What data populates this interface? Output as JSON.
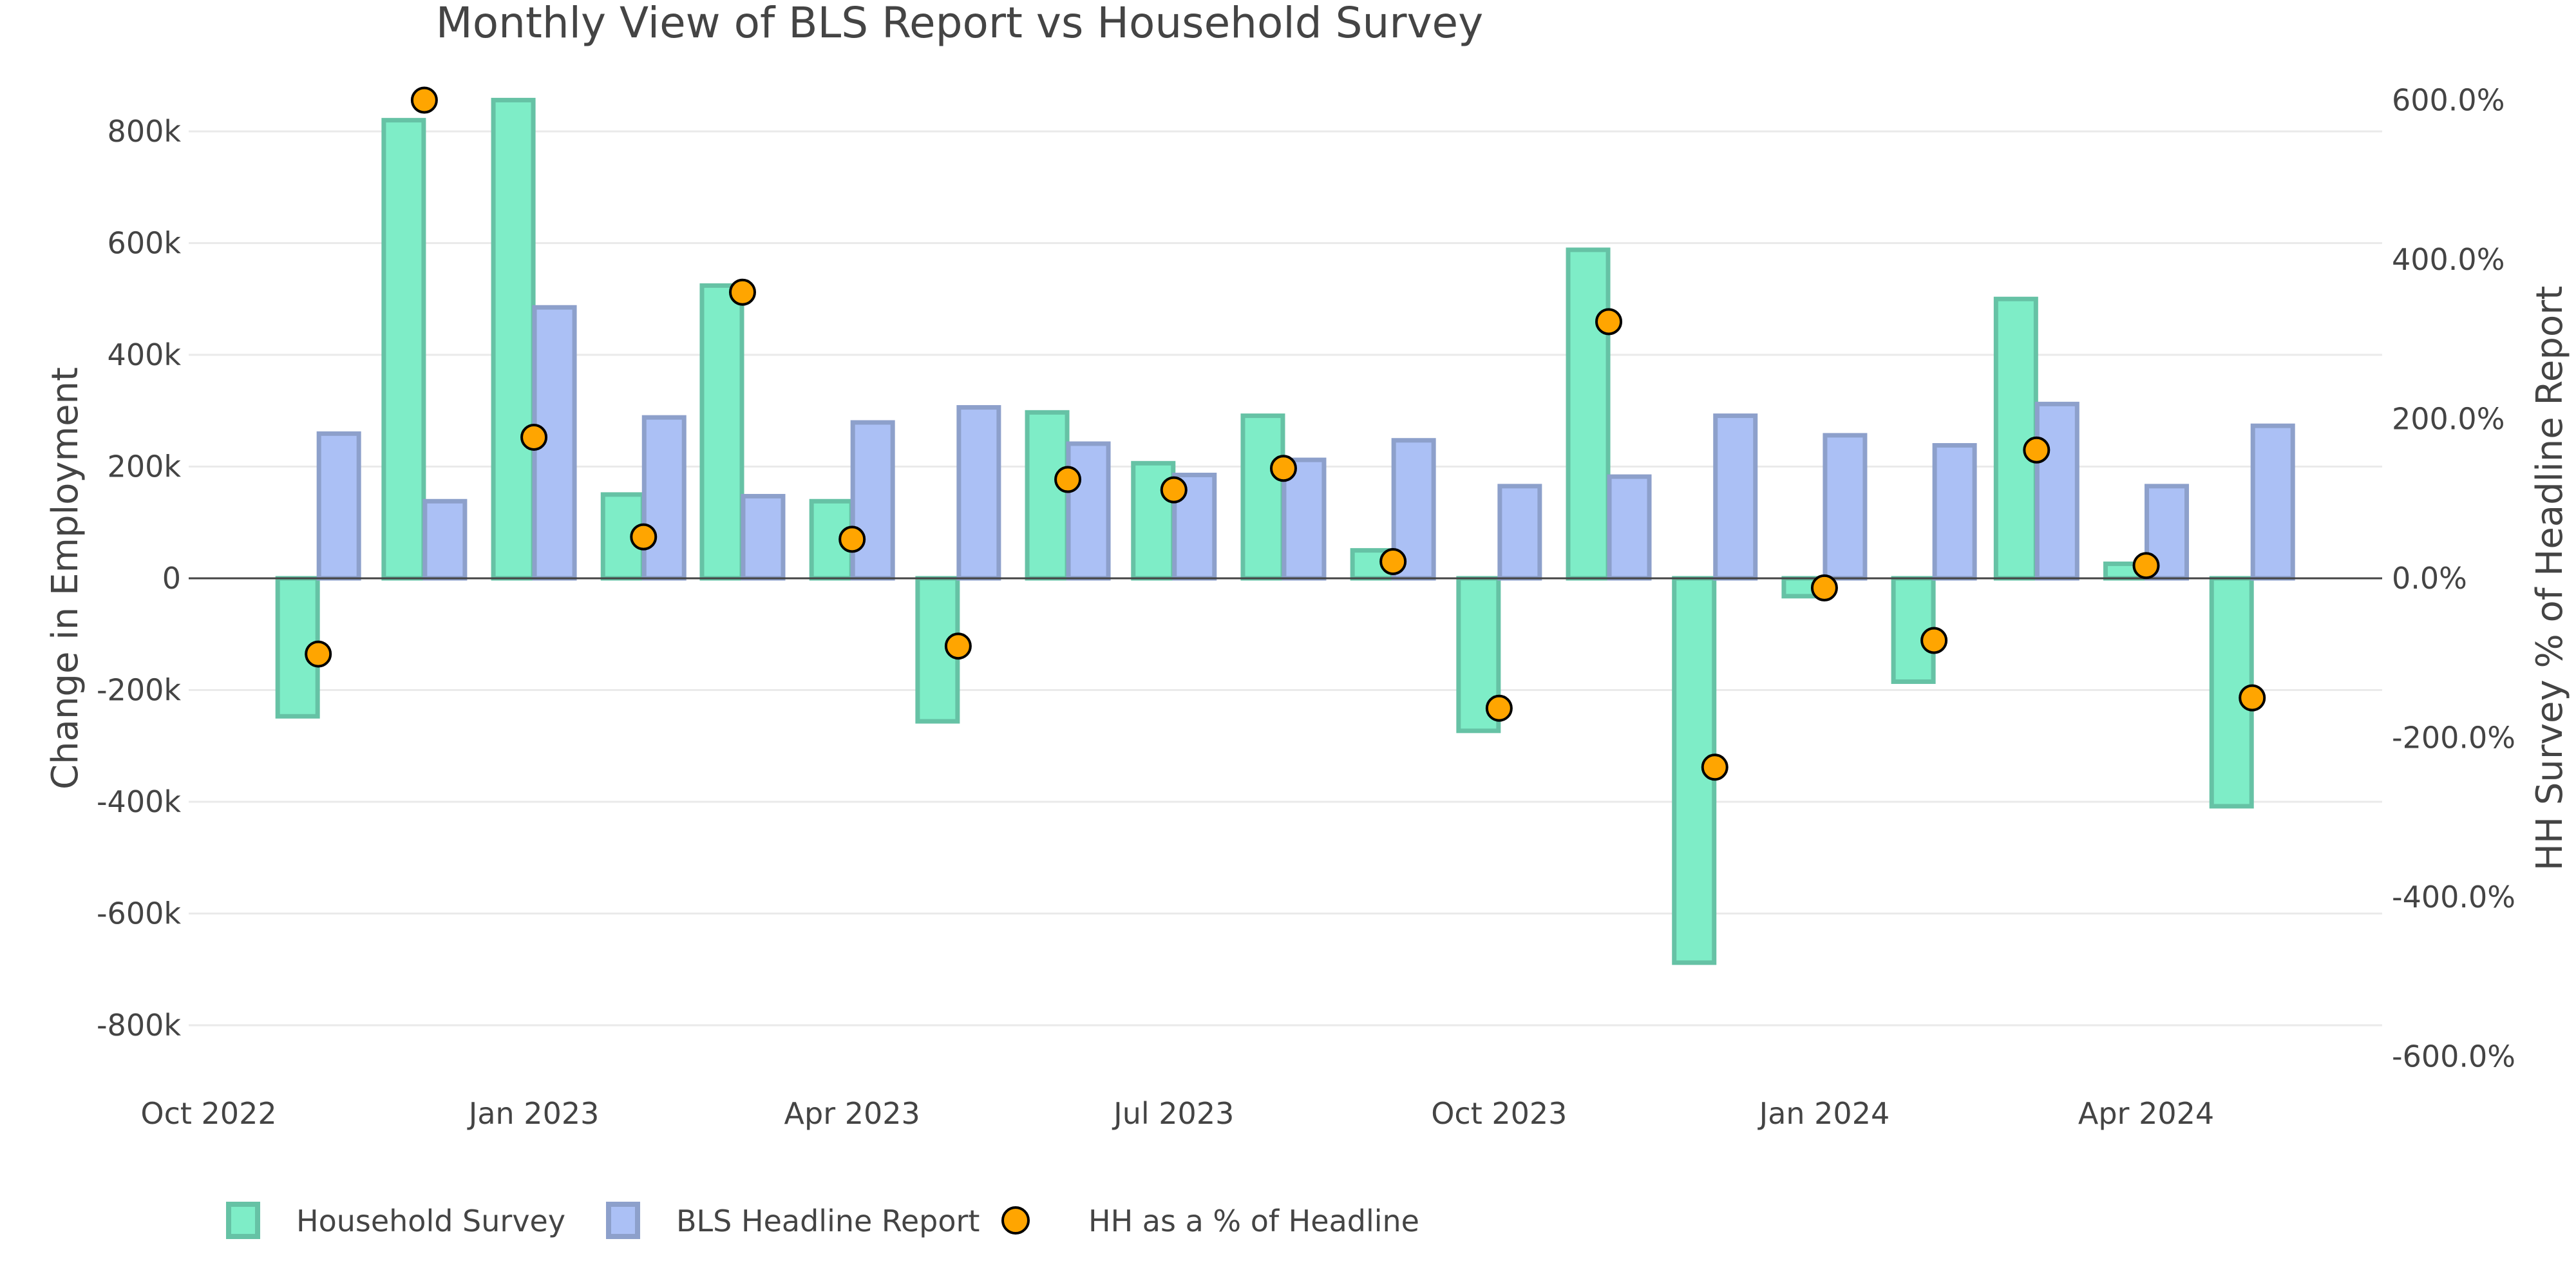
{
  "chart_data": {
    "type": "bar",
    "title": "Monthly View of BLS Report vs Household Survey",
    "ylabel": "Change in Employment",
    "y2label": "HH Survey % of Headline Report",
    "ylim": [
      -890000,
      918000
    ],
    "y2lim": [
      -600,
      600
    ],
    "grid": true,
    "legend_placement": "bottom-left",
    "x": [
      "2022-11",
      "2022-12",
      "2023-01",
      "2023-02",
      "2023-03",
      "2023-04",
      "2023-05",
      "2023-06",
      "2023-07",
      "2023-08",
      "2023-09",
      "2023-10",
      "2023-11",
      "2023-12",
      "2024-01",
      "2024-02",
      "2024-03",
      "2024-04",
      "2024-05"
    ],
    "x_ticks": [
      "Oct 2022",
      "Jan 2023",
      "Apr 2023",
      "Jul 2023",
      "Oct 2023",
      "Jan 2024",
      "Apr 2024"
    ],
    "x_tick_dates": [
      "2022-10-01",
      "2023-01-01",
      "2023-04-01",
      "2023-07-01",
      "2023-10-01",
      "2024-01-01",
      "2024-04-01"
    ],
    "y_ticks": [
      "-800k",
      "-600k",
      "-400k",
      "-200k",
      "0",
      "200k",
      "400k",
      "600k",
      "800k"
    ],
    "y_tick_values": [
      -800000,
      -600000,
      -400000,
      -200000,
      0,
      200000,
      400000,
      600000,
      800000
    ],
    "y2_ticks": [
      "-600.0%",
      "-400.0%",
      "-200.0%",
      "0.0%",
      "200.0%",
      "400.0%",
      "600.0%"
    ],
    "y2_tick_values": [
      -600,
      -400,
      -200,
      0,
      200,
      400,
      600
    ],
    "series": [
      {
        "name": "Household Survey",
        "type": "bar",
        "axis": "left",
        "fill": "#7eedc7",
        "stroke": "#66c2a5",
        "values": [
          -247000,
          820000,
          856000,
          150000,
          524000,
          138000,
          -256000,
          297000,
          206000,
          291000,
          50000,
          -273000,
          588000,
          -688000,
          -32000,
          -185000,
          500000,
          26000,
          -408000
        ]
      },
      {
        "name": "BLS Headline Report",
        "type": "bar",
        "axis": "left",
        "fill": "#abc0f5",
        "stroke": "#8da0cb",
        "values": [
          259000,
          138000,
          485000,
          288000,
          147000,
          279000,
          306000,
          241000,
          185000,
          212000,
          247000,
          165000,
          182000,
          291000,
          256000,
          238000,
          312000,
          165000,
          273000
        ]
      },
      {
        "name": "HH as a % of Headline",
        "type": "scatter",
        "axis": "right",
        "fill": "#ffa500",
        "stroke": "#000000",
        "values": [
          -95,
          600,
          177,
          52,
          359,
          49,
          -85,
          124,
          111,
          138,
          21,
          -163,
          322,
          -237,
          -12,
          -78,
          161,
          16,
          -150
        ]
      }
    ]
  }
}
